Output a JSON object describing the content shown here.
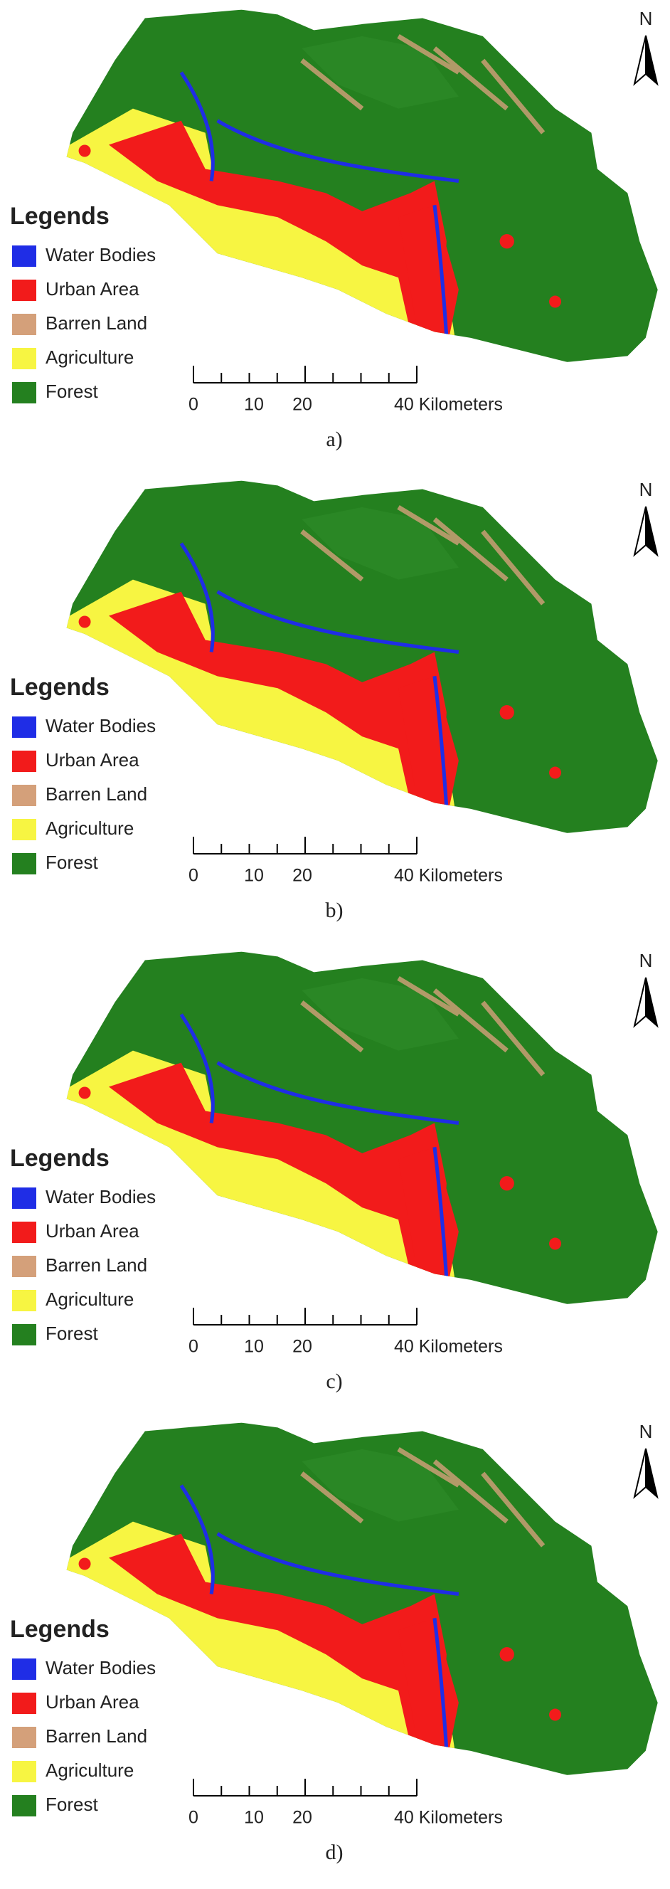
{
  "panels": [
    {
      "caption": "a)",
      "north": "N",
      "legend": {
        "title": "Legends",
        "items": [
          {
            "label": "Water Bodies",
            "color": "#1f2de6"
          },
          {
            "label": "Urban Area",
            "color": "#f21b1b"
          },
          {
            "label": "Barren Land",
            "color": "#d4a07a"
          },
          {
            "label": "Agriculture",
            "color": "#f7f542"
          },
          {
            "label": "Forest",
            "color": "#24801f"
          }
        ]
      },
      "scale_bar": {
        "labels": [
          "0",
          "10",
          "20",
          "40 Kilometers"
        ]
      }
    },
    {
      "caption": "b)",
      "north": "N",
      "legend": {
        "title": "Legends",
        "items": [
          {
            "label": "Water Bodies",
            "color": "#1f2de6"
          },
          {
            "label": "Urban Area",
            "color": "#f21b1b"
          },
          {
            "label": "Barren Land",
            "color": "#d4a07a"
          },
          {
            "label": "Agriculture",
            "color": "#f7f542"
          },
          {
            "label": "Forest",
            "color": "#24801f"
          }
        ]
      },
      "scale_bar": {
        "labels": [
          "0",
          "10",
          "20",
          "40 Kilometers"
        ]
      }
    },
    {
      "caption": "c)",
      "north": "N",
      "legend": {
        "title": "Legends",
        "items": [
          {
            "label": "Water Bodies",
            "color": "#1f2de6"
          },
          {
            "label": "Urban Area",
            "color": "#f21b1b"
          },
          {
            "label": "Barren Land",
            "color": "#d4a07a"
          },
          {
            "label": "Agriculture",
            "color": "#f7f542"
          },
          {
            "label": "Forest",
            "color": "#24801f"
          }
        ]
      },
      "scale_bar": {
        "labels": [
          "0",
          "10",
          "20",
          "40 Kilometers"
        ]
      }
    },
    {
      "caption": "d)",
      "north": "N",
      "legend": {
        "title": "Legends",
        "items": [
          {
            "label": "Water Bodies",
            "color": "#1f2de6"
          },
          {
            "label": "Urban Area",
            "color": "#f21b1b"
          },
          {
            "label": "Barren Land",
            "color": "#d4a07a"
          },
          {
            "label": "Agriculture",
            "color": "#f7f542"
          },
          {
            "label": "Forest",
            "color": "#24801f"
          }
        ]
      },
      "scale_bar": {
        "labels": [
          "0",
          "10",
          "20",
          "40 Kilometers"
        ]
      }
    }
  ]
}
